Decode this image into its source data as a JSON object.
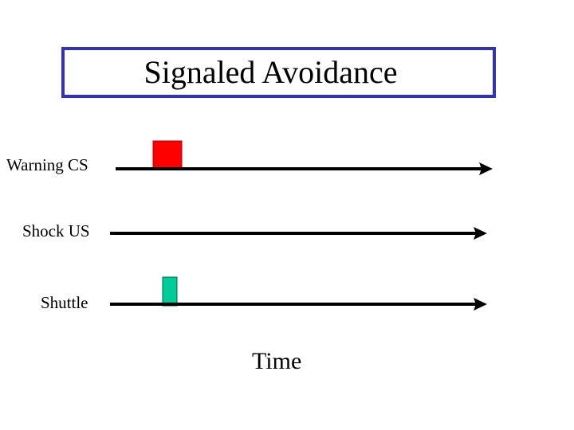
{
  "title": "Signaled Avoidance",
  "rows": [
    {
      "label": "Warning CS"
    },
    {
      "label": "Shock US"
    },
    {
      "label": "Shuttle"
    }
  ],
  "x_axis_label": "Time",
  "colors": {
    "title_border": "#3333aa",
    "warning_cs_marker": "#ff0000",
    "shuttle_marker": "#00cc99",
    "line": "#000000"
  }
}
